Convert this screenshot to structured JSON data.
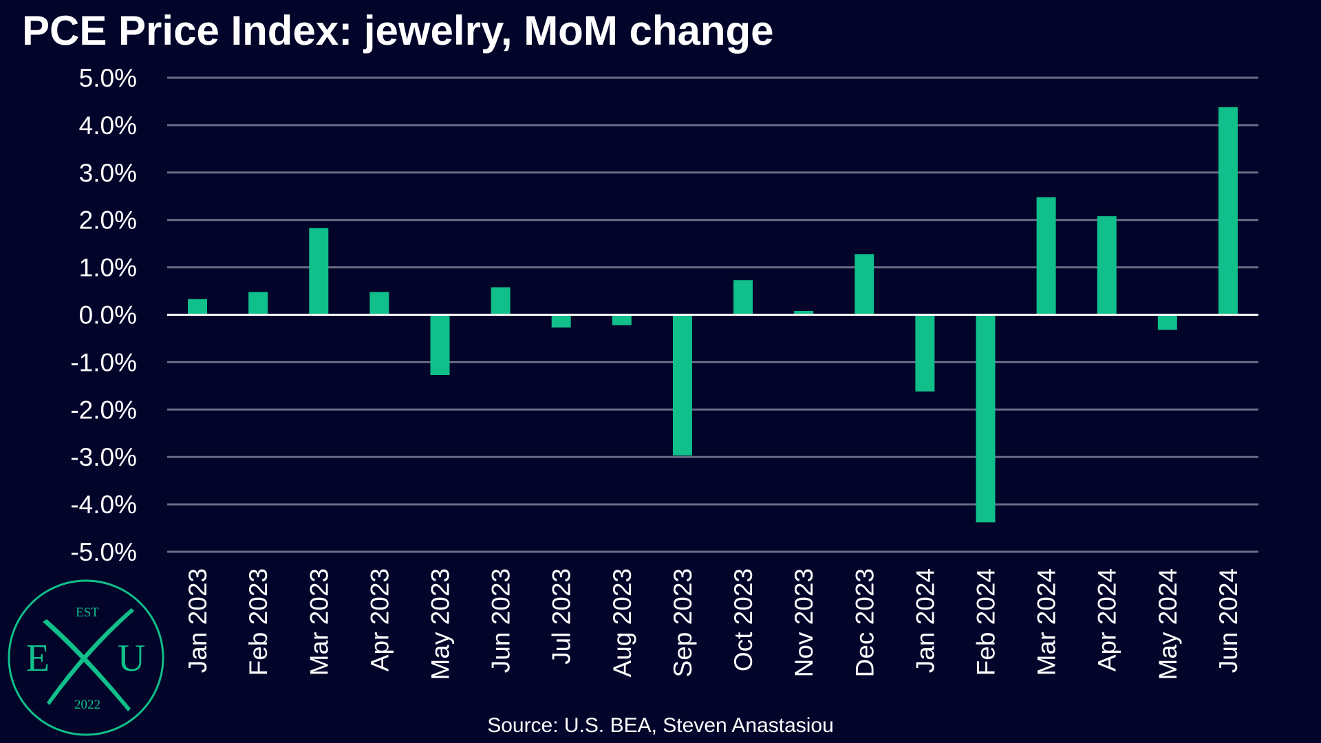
{
  "chart_data": {
    "type": "bar",
    "title": "PCE Price Index: jewelry, MoM change",
    "xlabel": "",
    "ylabel": "",
    "ylim": [
      -5.0,
      5.0
    ],
    "yticks": [
      "5.0%",
      "4.0%",
      "3.0%",
      "2.0%",
      "1.0%",
      "0.0%",
      "-1.0%",
      "-2.0%",
      "-3.0%",
      "-4.0%",
      "-5.0%"
    ],
    "ytick_values": [
      5,
      4,
      3,
      2,
      1,
      0,
      -1,
      -2,
      -3,
      -4,
      -5
    ],
    "categories": [
      "Jan 2023",
      "Feb 2023",
      "Mar 2023",
      "Apr 2023",
      "May 2023",
      "Jun 2023",
      "Jul 2023",
      "Aug 2023",
      "Sep 2023",
      "Oct 2023",
      "Nov 2023",
      "Dec 2023",
      "Jan 2024",
      "Feb 2024",
      "Mar 2024",
      "Apr 2024",
      "May 2024",
      "Jun 2024"
    ],
    "values": [
      0.33,
      0.48,
      1.83,
      0.48,
      -1.27,
      0.58,
      -0.27,
      -0.22,
      -2.97,
      0.73,
      0.08,
      1.28,
      -1.62,
      -4.38,
      2.48,
      2.08,
      -0.32,
      4.38
    ],
    "grid": true,
    "bar_color": "#10bf8a",
    "source": "Source: U.S. BEA, Steven Anastasiou"
  },
  "logo": {
    "est": "EST",
    "left_letter": "E",
    "right_letter": "U",
    "year": "2022",
    "color": "#10bf8a"
  },
  "colors": {
    "background": "#03042a",
    "grid": "#6b6c85",
    "zero_line": "#ffffff",
    "text": "#ffffff"
  }
}
